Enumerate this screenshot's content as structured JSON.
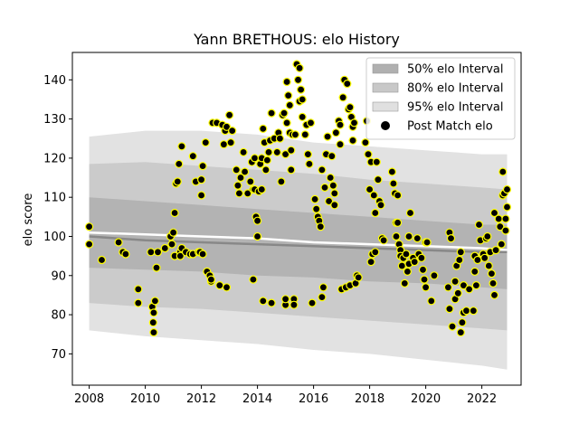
{
  "chart_data": {
    "type": "scatter",
    "title": "Yann BRETHOUS: elo History",
    "xlabel": "",
    "ylabel": "elo score",
    "xlim": [
      2007.4,
      2023.4
    ],
    "ylim": [
      62,
      147
    ],
    "xticks": [
      2008,
      2010,
      2012,
      2014,
      2016,
      2018,
      2020,
      2022
    ],
    "yticks": [
      70,
      80,
      90,
      100,
      110,
      120,
      130,
      140
    ],
    "grid": false,
    "legend_position": "top-right",
    "legend": [
      {
        "label": "50% elo Interval",
        "kind": "band",
        "color": "#b0b0b0"
      },
      {
        "label": "80% elo Interval",
        "kind": "band",
        "color": "#c8c8c8"
      },
      {
        "label": "95% elo Interval",
        "kind": "band",
        "color": "#e0e0e0"
      },
      {
        "label": "Post Match elo",
        "kind": "marker",
        "color": "#000000"
      }
    ],
    "bands": [
      {
        "name": "95% elo Interval",
        "color": "#e2e2e2",
        "x": [
          2008,
          2010,
          2012,
          2014,
          2016,
          2018,
          2020,
          2022,
          2022.9
        ],
        "upper": [
          125.5,
          127,
          127,
          126,
          124,
          123,
          122,
          121,
          121
        ],
        "lower": [
          76,
          74.5,
          73.5,
          72.5,
          71,
          70,
          68.5,
          67,
          66
        ]
      },
      {
        "name": "80% elo Interval",
        "color": "#cbcbcb",
        "x": [
          2008,
          2010,
          2012,
          2014,
          2016,
          2018,
          2020,
          2022,
          2022.9
        ],
        "upper": [
          118.5,
          119,
          118,
          117,
          116,
          114.5,
          113.5,
          112.5,
          112
        ],
        "lower": [
          83,
          82,
          81.5,
          80.5,
          79.5,
          78.5,
          77.5,
          76.5,
          76
        ]
      },
      {
        "name": "50% elo Interval",
        "color": "#b3b3b3",
        "x": [
          2008,
          2010,
          2012,
          2014,
          2016,
          2018,
          2020,
          2022,
          2022.9
        ],
        "upper": [
          110,
          109,
          108,
          107,
          106,
          105,
          104,
          103,
          103
        ],
        "lower": [
          92,
          91.5,
          91,
          90,
          89.5,
          88.5,
          88,
          87,
          86.5
        ]
      }
    ],
    "mean_lines": [
      {
        "color": "#ffffff",
        "x": [
          2008,
          2010,
          2012,
          2014,
          2016,
          2018,
          2020,
          2022,
          2022.9
        ],
        "y": [
          101,
          100.5,
          100,
          99.5,
          98.5,
          98,
          97.5,
          97,
          96.5
        ]
      },
      {
        "color": "#888888",
        "x": [
          2008,
          2010,
          2012,
          2014,
          2016,
          2018,
          2020,
          2022,
          2022.9
        ],
        "y": [
          100,
          99,
          98.5,
          98,
          97.5,
          97,
          96.5,
          96,
          96
        ]
      }
    ],
    "series": [
      {
        "name": "Post Match elo",
        "marker_fill": "#000000",
        "marker_edge": "#ffff00",
        "points": [
          [
            2008.0,
            102.5
          ],
          [
            2008.0,
            98
          ],
          [
            2008.45,
            94
          ],
          [
            2009.05,
            98.5
          ],
          [
            2009.2,
            96
          ],
          [
            2009.3,
            95.5
          ],
          [
            2009.75,
            86.5
          ],
          [
            2009.75,
            83
          ],
          [
            2010.2,
            96
          ],
          [
            2010.25,
            82
          ],
          [
            2010.28,
            78
          ],
          [
            2010.3,
            75.5
          ],
          [
            2010.3,
            80.5
          ],
          [
            2010.35,
            83.5
          ],
          [
            2010.4,
            92
          ],
          [
            2010.45,
            96
          ],
          [
            2010.7,
            97
          ],
          [
            2010.9,
            100
          ],
          [
            2010.95,
            98
          ],
          [
            2011.0,
            101
          ],
          [
            2011.05,
            106
          ],
          [
            2011.05,
            95
          ],
          [
            2011.1,
            113.5
          ],
          [
            2011.15,
            114
          ],
          [
            2011.2,
            118.5
          ],
          [
            2011.25,
            96
          ],
          [
            2011.25,
            95
          ],
          [
            2011.3,
            97
          ],
          [
            2011.3,
            123
          ],
          [
            2011.45,
            96
          ],
          [
            2011.6,
            95.5
          ],
          [
            2011.7,
            120.5
          ],
          [
            2011.7,
            95.5
          ],
          [
            2011.8,
            114
          ],
          [
            2011.9,
            96
          ],
          [
            2011.95,
            96
          ],
          [
            2012.0,
            110.5
          ],
          [
            2012.0,
            114.5
          ],
          [
            2012.05,
            118
          ],
          [
            2012.05,
            95.5
          ],
          [
            2012.15,
            124
          ],
          [
            2012.2,
            91
          ],
          [
            2012.3,
            90
          ],
          [
            2012.35,
            88.5
          ],
          [
            2012.35,
            89
          ],
          [
            2012.4,
            129
          ],
          [
            2012.55,
            129
          ],
          [
            2012.65,
            87.5
          ],
          [
            2012.75,
            128.5
          ],
          [
            2012.8,
            123.5
          ],
          [
            2012.85,
            127
          ],
          [
            2012.9,
            87
          ],
          [
            2012.9,
            128
          ],
          [
            2013.0,
            131
          ],
          [
            2013.05,
            124
          ],
          [
            2013.1,
            127
          ],
          [
            2013.25,
            117
          ],
          [
            2013.3,
            113
          ],
          [
            2013.35,
            111
          ],
          [
            2013.4,
            115
          ],
          [
            2013.5,
            121.5
          ],
          [
            2013.55,
            116.5
          ],
          [
            2013.65,
            111
          ],
          [
            2013.75,
            114
          ],
          [
            2013.8,
            119
          ],
          [
            2013.85,
            112
          ],
          [
            2013.85,
            89
          ],
          [
            2013.9,
            120
          ],
          [
            2013.9,
            112
          ],
          [
            2013.95,
            105
          ],
          [
            2014.0,
            104
          ],
          [
            2014.0,
            100
          ],
          [
            2014.05,
            111.5
          ],
          [
            2014.1,
            118.5
          ],
          [
            2014.15,
            120
          ],
          [
            2014.15,
            112
          ],
          [
            2014.2,
            127.5
          ],
          [
            2014.2,
            83.5
          ],
          [
            2014.25,
            124
          ],
          [
            2014.3,
            117
          ],
          [
            2014.35,
            119.5
          ],
          [
            2014.4,
            121.5
          ],
          [
            2014.45,
            124.5
          ],
          [
            2014.5,
            131.5
          ],
          [
            2014.5,
            83
          ],
          [
            2014.6,
            125
          ],
          [
            2014.7,
            121.5
          ],
          [
            2014.75,
            126.5
          ],
          [
            2014.8,
            125
          ],
          [
            2014.85,
            114
          ],
          [
            2014.9,
            131
          ],
          [
            2014.95,
            131.5
          ],
          [
            2015.0,
            121
          ],
          [
            2015.0,
            82.5
          ],
          [
            2015.0,
            84
          ],
          [
            2015.05,
            129
          ],
          [
            2015.05,
            139.5
          ],
          [
            2015.1,
            136
          ],
          [
            2015.15,
            133.5
          ],
          [
            2015.15,
            126.5
          ],
          [
            2015.2,
            117
          ],
          [
            2015.2,
            122
          ],
          [
            2015.25,
            126
          ],
          [
            2015.3,
            84
          ],
          [
            2015.3,
            82.5
          ],
          [
            2015.35,
            126
          ],
          [
            2015.4,
            144
          ],
          [
            2015.45,
            140
          ],
          [
            2015.5,
            143
          ],
          [
            2015.5,
            134.5
          ],
          [
            2015.55,
            137.5
          ],
          [
            2015.6,
            130.5
          ],
          [
            2015.6,
            135
          ],
          [
            2015.7,
            126
          ],
          [
            2015.75,
            128.5
          ],
          [
            2015.8,
            121
          ],
          [
            2015.85,
            118.5
          ],
          [
            2015.9,
            129
          ],
          [
            2015.95,
            83
          ],
          [
            2016.05,
            109.5
          ],
          [
            2016.1,
            107
          ],
          [
            2016.15,
            105
          ],
          [
            2016.2,
            104
          ],
          [
            2016.25,
            102.5
          ],
          [
            2016.3,
            117
          ],
          [
            2016.3,
            84.5
          ],
          [
            2016.35,
            87
          ],
          [
            2016.4,
            112.5
          ],
          [
            2016.45,
            121
          ],
          [
            2016.5,
            125.5
          ],
          [
            2016.55,
            109
          ],
          [
            2016.6,
            115
          ],
          [
            2016.65,
            120.5
          ],
          [
            2016.7,
            113
          ],
          [
            2016.75,
            111
          ],
          [
            2016.75,
            108
          ],
          [
            2016.8,
            126.5
          ],
          [
            2016.9,
            129.5
          ],
          [
            2016.95,
            128.5
          ],
          [
            2016.95,
            123.5
          ],
          [
            2017.0,
            86.5
          ],
          [
            2017.05,
            135.5
          ],
          [
            2017.1,
            140
          ],
          [
            2017.15,
            87
          ],
          [
            2017.2,
            139
          ],
          [
            2017.25,
            132.5
          ],
          [
            2017.3,
            133
          ],
          [
            2017.3,
            87.5
          ],
          [
            2017.35,
            130.5
          ],
          [
            2017.4,
            128
          ],
          [
            2017.4,
            124.5
          ],
          [
            2017.45,
            129
          ],
          [
            2017.5,
            88
          ],
          [
            2017.55,
            90
          ],
          [
            2017.6,
            89.5
          ],
          [
            2017.85,
            124
          ],
          [
            2017.9,
            129.5
          ],
          [
            2017.95,
            121
          ],
          [
            2018.0,
            112
          ],
          [
            2018.05,
            119
          ],
          [
            2018.05,
            93.5
          ],
          [
            2018.1,
            95.5
          ],
          [
            2018.15,
            110.5
          ],
          [
            2018.2,
            106
          ],
          [
            2018.2,
            96
          ],
          [
            2018.25,
            119
          ],
          [
            2018.3,
            114.5
          ],
          [
            2018.35,
            109
          ],
          [
            2018.4,
            108
          ],
          [
            2018.45,
            99.5
          ],
          [
            2018.5,
            99
          ],
          [
            2018.8,
            116.5
          ],
          [
            2018.85,
            113.5
          ],
          [
            2018.9,
            111
          ],
          [
            2018.95,
            103.5
          ],
          [
            2018.95,
            100
          ],
          [
            2019.0,
            103.5
          ],
          [
            2019.0,
            110.5
          ],
          [
            2019.05,
            98
          ],
          [
            2019.1,
            96.5
          ],
          [
            2019.1,
            95
          ],
          [
            2019.15,
            92.5
          ],
          [
            2019.2,
            94.5
          ],
          [
            2019.25,
            88
          ],
          [
            2019.3,
            95.5
          ],
          [
            2019.35,
            91
          ],
          [
            2019.4,
            100
          ],
          [
            2019.4,
            93
          ],
          [
            2019.45,
            106
          ],
          [
            2019.55,
            94.5
          ],
          [
            2019.6,
            93.5
          ],
          [
            2019.7,
            99.5
          ],
          [
            2019.75,
            95.5
          ],
          [
            2019.85,
            94.5
          ],
          [
            2019.9,
            91.5
          ],
          [
            2019.95,
            89
          ],
          [
            2020.0,
            87
          ],
          [
            2020.0,
            98.5
          ],
          [
            2020.05,
            98.5
          ],
          [
            2020.2,
            83.5
          ],
          [
            2020.3,
            90
          ],
          [
            2020.8,
            87
          ],
          [
            2020.85,
            101
          ],
          [
            2020.85,
            81.5
          ],
          [
            2020.9,
            99.5
          ],
          [
            2020.95,
            77
          ],
          [
            2021.05,
            88.5
          ],
          [
            2021.05,
            84
          ],
          [
            2021.1,
            92.5
          ],
          [
            2021.15,
            85.5
          ],
          [
            2021.2,
            94
          ],
          [
            2021.25,
            96
          ],
          [
            2021.25,
            75.5
          ],
          [
            2021.3,
            78
          ],
          [
            2021.35,
            80.5
          ],
          [
            2021.35,
            87.5
          ],
          [
            2021.45,
            81
          ],
          [
            2021.55,
            86.5
          ],
          [
            2021.7,
            81
          ],
          [
            2021.75,
            95
          ],
          [
            2021.75,
            91
          ],
          [
            2021.8,
            87.5
          ],
          [
            2021.85,
            94
          ],
          [
            2021.9,
            103
          ],
          [
            2021.95,
            99
          ],
          [
            2022.05,
            95.5
          ],
          [
            2022.1,
            94.5
          ],
          [
            2022.15,
            99.5
          ],
          [
            2022.2,
            100
          ],
          [
            2022.25,
            92.5
          ],
          [
            2022.3,
            96
          ],
          [
            2022.35,
            90.5
          ],
          [
            2022.4,
            88
          ],
          [
            2022.45,
            85
          ],
          [
            2022.45,
            106
          ],
          [
            2022.5,
            96.5
          ],
          [
            2022.6,
            104.5
          ],
          [
            2022.65,
            102.5
          ],
          [
            2022.7,
            98
          ],
          [
            2022.75,
            110.5
          ],
          [
            2022.75,
            116.5
          ],
          [
            2022.8,
            111
          ],
          [
            2022.85,
            104.5
          ],
          [
            2022.85,
            101.5
          ],
          [
            2022.9,
            107.5
          ],
          [
            2022.9,
            112
          ]
        ]
      }
    ]
  }
}
